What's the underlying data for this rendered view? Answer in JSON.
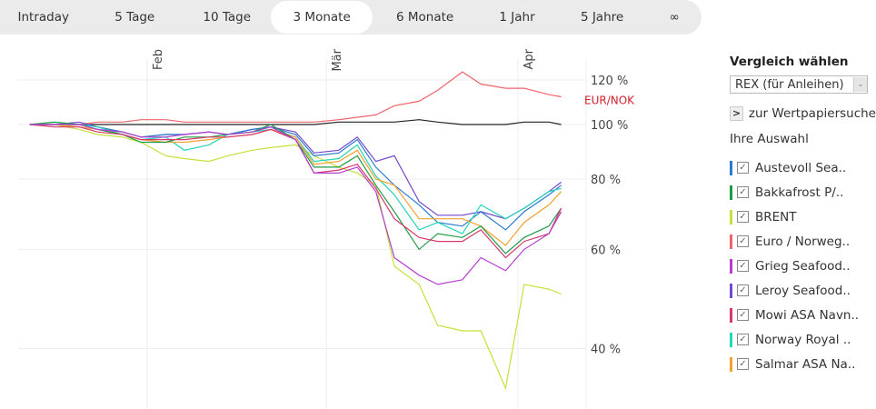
{
  "tabs": [
    {
      "label": "Intraday"
    },
    {
      "label": "5 Tage"
    },
    {
      "label": "10 Tage"
    },
    {
      "label": "3 Monate",
      "active": true
    },
    {
      "label": "6 Monate"
    },
    {
      "label": "1 Jahr"
    },
    {
      "label": "5 Jahre"
    },
    {
      "label": "∞"
    }
  ],
  "sidebar": {
    "compare_heading": "Vergleich wählen",
    "compare_select": "REX (für Anleihen)",
    "search_link": "zur Wertpapiersuche",
    "selection_heading": "Ihre Auswahl",
    "items": [
      {
        "label": "Austevoll Sea..",
        "color": "#2a7bd0"
      },
      {
        "label": "Bakkafrost P/..",
        "color": "#1e9a45"
      },
      {
        "label": "BRENT",
        "color": "#c4e23c"
      },
      {
        "label": "Euro / Norweg..",
        "color": "#f0636b"
      },
      {
        "label": "Grieg Seafood..",
        "color": "#b43fce"
      },
      {
        "label": "Leroy Seafood..",
        "color": "#7348d0"
      },
      {
        "label": "Mowi ASA Navn..",
        "color": "#d8386c"
      },
      {
        "label": "Norway Royal ..",
        "color": "#22d6b8"
      },
      {
        "label": "Salmar ASA Na..",
        "color": "#f4a130"
      }
    ]
  },
  "chart_data": {
    "type": "line",
    "yscale": "log",
    "ylim": [
      33,
      126
    ],
    "grid": true,
    "yticks": [
      {
        "v": 120,
        "label": "120 %"
      },
      {
        "v": 100,
        "label": "100 %"
      },
      {
        "v": 80,
        "label": "80 %"
      },
      {
        "v": 60,
        "label": "60 %"
      },
      {
        "v": 40,
        "label": "40 %"
      }
    ],
    "xticks": [
      {
        "date": "2020-02-01",
        "label": "Feb"
      },
      {
        "date": "2020-03-01",
        "label": "Mär"
      },
      {
        "date": "2020-04-01",
        "label": "Apr"
      }
    ],
    "x": [
      "2020-01-13",
      "2020-01-17",
      "2020-01-21",
      "2020-01-24",
      "2020-01-28",
      "2020-01-31",
      "2020-02-04",
      "2020-02-07",
      "2020-02-11",
      "2020-02-14",
      "2020-02-18",
      "2020-02-21",
      "2020-02-25",
      "2020-02-28",
      "2020-03-03",
      "2020-03-06",
      "2020-03-09",
      "2020-03-12",
      "2020-03-16",
      "2020-03-19",
      "2020-03-23",
      "2020-03-26",
      "2020-03-30",
      "2020-04-02",
      "2020-04-06",
      "2020-04-08"
    ],
    "annotation": {
      "label": "EUR/NOK",
      "color": "#d0202a"
    },
    "series": [
      {
        "color": "#222222",
        "values": [
          100,
          100,
          100,
          100,
          100,
          100,
          100,
          100,
          100,
          100,
          100,
          100,
          100,
          100,
          101,
          101,
          101,
          101,
          102,
          101,
          100,
          100,
          100,
          101,
          101,
          100
        ]
      },
      {
        "name": "Euro / Norweg..",
        "color": "#f0636b",
        "values": [
          100,
          100,
          100,
          101,
          101,
          102,
          102,
          101,
          101,
          101,
          101,
          101,
          101,
          101,
          102,
          103,
          104,
          108,
          110,
          115,
          124,
          118,
          116,
          116,
          113,
          112
        ]
      },
      {
        "name": "BRENT",
        "color": "#c4e23c",
        "values": [
          100,
          100,
          98,
          96,
          95,
          93,
          88,
          87,
          86,
          88,
          90,
          91,
          92,
          88,
          84,
          82,
          78,
          56,
          52,
          44,
          43,
          43,
          34,
          52,
          51,
          50
        ]
      },
      {
        "name": "Leroy Seafood..",
        "color": "#7348d0",
        "values": [
          100,
          100,
          101,
          99,
          97,
          95,
          96,
          96,
          97,
          96,
          98,
          99,
          97,
          89,
          90,
          95,
          86,
          88,
          73,
          69,
          69,
          70,
          68,
          71,
          76,
          79
        ]
      },
      {
        "name": "Austevoll Sea..",
        "color": "#2a7bd0",
        "values": [
          100,
          100,
          100,
          99,
          97,
          95,
          96,
          96,
          97,
          96,
          98,
          99,
          96,
          88,
          89,
          94,
          84,
          78,
          72,
          67,
          66,
          70,
          65,
          70,
          75,
          78
        ]
      },
      {
        "name": "Norway Royal ..",
        "color": "#22d6b8",
        "values": [
          100,
          101,
          100,
          99,
          96,
          94,
          95,
          90,
          92,
          96,
          97,
          98,
          95,
          86,
          87,
          92,
          81,
          75,
          65,
          67,
          64,
          72,
          68,
          71,
          76,
          77
        ]
      },
      {
        "name": "Salmar ASA Na..",
        "color": "#f4a130",
        "values": [
          100,
          100,
          99,
          98,
          96,
          94,
          93,
          93,
          94,
          95,
          96,
          98,
          95,
          85,
          86,
          90,
          80,
          78,
          68,
          68,
          68,
          66,
          61,
          67,
          72,
          76
        ]
      },
      {
        "name": "Bakkafrost P/..",
        "color": "#1e9a45",
        "values": [
          100,
          101,
          100,
          98,
          96,
          93,
          93,
          95,
          95,
          96,
          97,
          100,
          94,
          84,
          84,
          88,
          78,
          70,
          60,
          64,
          63,
          66,
          59,
          63,
          66,
          71
        ]
      },
      {
        "name": "Mowi ASA Navn..",
        "color": "#d8386c",
        "values": [
          100,
          99,
          99,
          97,
          96,
          94,
          94,
          94,
          95,
          95,
          96,
          98,
          94,
          82,
          83,
          85,
          77,
          68,
          63,
          62,
          62,
          65,
          58,
          62,
          64,
          71
        ]
      },
      {
        "name": "Grieg Seafood..",
        "color": "#b43fce",
        "values": [
          100,
          100,
          100,
          98,
          97,
          95,
          95,
          96,
          97,
          96,
          97,
          99,
          94,
          82,
          82,
          84,
          76,
          58,
          54,
          52,
          53,
          58,
          55,
          60,
          64,
          70
        ]
      }
    ]
  }
}
